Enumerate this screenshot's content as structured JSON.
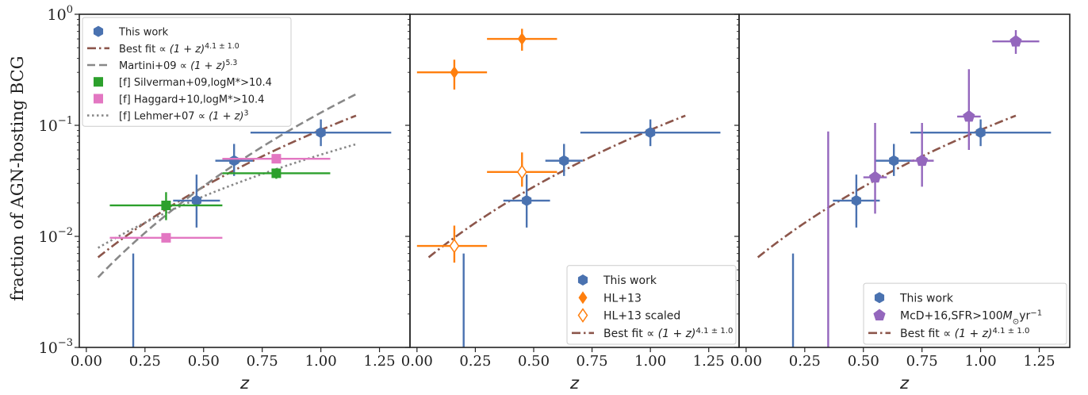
{
  "figure": {
    "ylabel": "fraction of AGN-hosting BCG",
    "colors": {
      "this_work": "#4a72b0",
      "best_fit": "#8c564b",
      "martini": "#888888",
      "silverman": "#2ca02c",
      "haggard": "#e377c2",
      "lehmer": "#888888",
      "hl13": "#ff7f0e",
      "mcd16": "#9467bd"
    }
  },
  "chart_data": [
    {
      "type": "scatter",
      "xlabel": "z",
      "ylabel": "fraction of AGN-hosting BCG",
      "xlim": [
        -0.03,
        1.38
      ],
      "ylim": [
        0.001,
        1.0
      ],
      "yscale": "log",
      "xticks": [
        "0.00",
        "0.25",
        "0.50",
        "0.75",
        "1.00",
        "1.25"
      ],
      "yticks": [
        "10^-3",
        "10^-2",
        "10^-1",
        "10^0"
      ],
      "legend_position": "upper-left",
      "legend": [
        {
          "label": "This work",
          "marker": "hexagon",
          "color": "this_work"
        },
        {
          "label": "Best fit ∝(1+z)^{4.1±1.0}",
          "pre": "Best fit ",
          "math": "∝ (1 + z)",
          "sup": "4.1 ± 1.0",
          "line": "dashdot",
          "color": "best_fit"
        },
        {
          "label": "Martini+09 ∝(1+z)^{5.3}",
          "pre": "Martini+09 ",
          "math": "∝ (1 + z)",
          "sup": "5.3",
          "line": "dashed",
          "color": "martini"
        },
        {
          "label": "[f] Silverman+09,logM*>10.4",
          "pre": "[f] Silverman+09,logM*>10.4",
          "marker": "square",
          "color": "silverman"
        },
        {
          "label": "[f] Haggard+10,logM*>10.4",
          "pre": "[f] Haggard+10,logM*>10.4",
          "marker": "square",
          "color": "haggard"
        },
        {
          "label": "[f] Lehmer+07 ∝(1+z)^3",
          "pre": "[f] Lehmer+07 ",
          "math": "∝ (1 + z)",
          "sup": "3",
          "line": "dotted",
          "color": "lehmer"
        }
      ],
      "points": [
        {
          "series": "This work",
          "marker": "hexagon",
          "color": "this_work",
          "x": 0.47,
          "y": 0.021,
          "xerr": [
            0.1,
            0.1
          ],
          "yerr": [
            0.012,
            0.036
          ]
        },
        {
          "series": "This work",
          "marker": "hexagon",
          "color": "this_work",
          "x": 0.63,
          "y": 0.048,
          "xerr": [
            0.08,
            0.08
          ],
          "yerr": [
            0.035,
            0.068
          ]
        },
        {
          "series": "This work",
          "marker": "hexagon",
          "color": "this_work",
          "x": 1.0,
          "y": 0.086,
          "xerr": [
            0.3,
            0.3
          ],
          "yerr": [
            0.065,
            0.113
          ]
        },
        {
          "series": "This work",
          "marker": "none",
          "color": "this_work",
          "x": 0.2,
          "y": null,
          "yerr": [
            0.001,
            0.007
          ]
        },
        {
          "series": "[f] Silverman+09,logM*>10.4",
          "marker": "square",
          "color": "silverman",
          "x": 0.34,
          "y": 0.019,
          "xerr": [
            0.24,
            0.24
          ],
          "yerr": [
            0.014,
            0.025
          ]
        },
        {
          "series": "[f] Silverman+09,logM*>10.4",
          "marker": "square",
          "color": "silverman",
          "x": 0.81,
          "y": 0.037,
          "xerr": [
            0.23,
            0.23
          ],
          "yerr": [
            0.033,
            0.041
          ]
        },
        {
          "series": "[f] Haggard+10,logM*>10.4",
          "marker": "square",
          "color": "haggard",
          "x": 0.34,
          "y": 0.0097,
          "xerr": [
            0.24,
            0.24
          ]
        },
        {
          "series": "[f] Haggard+10,logM*>10.4",
          "marker": "square",
          "color": "haggard",
          "x": 0.81,
          "y": 0.05,
          "xerr": [
            0.23,
            0.23
          ]
        }
      ],
      "curves": [
        {
          "name": "Best fit",
          "kind": "power",
          "norm": 0.0053,
          "exponent": 4.1,
          "x_range": [
            0.05,
            1.15
          ],
          "line": "dashdot",
          "color": "best_fit"
        },
        {
          "name": "Martini+09",
          "kind": "power",
          "norm": 0.0033,
          "exponent": 5.3,
          "x_range": [
            0.05,
            1.15
          ],
          "line": "dashed",
          "color": "martini"
        },
        {
          "name": "[f] Lehmer+07",
          "kind": "power",
          "norm": 0.0068,
          "exponent": 3.0,
          "x_range": [
            0.05,
            1.15
          ],
          "line": "dotted",
          "color": "lehmer"
        }
      ]
    },
    {
      "type": "scatter",
      "xlabel": "z",
      "xlim": [
        -0.03,
        1.38
      ],
      "ylim": [
        0.001,
        1.0
      ],
      "yscale": "log",
      "xticks": [
        "0.00",
        "0.25",
        "0.50",
        "0.75",
        "1.00",
        "1.25"
      ],
      "legend_position": "lower-right",
      "legend": [
        {
          "label": "This work",
          "marker": "hexagon",
          "color": "this_work"
        },
        {
          "label": "HL+13",
          "marker": "diamond",
          "color": "hl13"
        },
        {
          "label": "HL+13 scaled",
          "marker": "diamond-open",
          "color": "hl13"
        },
        {
          "label": "Best fit ∝(1+z)^{4.1±1.0}",
          "pre": "Best fit ",
          "math": "∝ (1 + z)",
          "sup": "4.1 ± 1.0",
          "line": "dashdot",
          "color": "best_fit"
        }
      ],
      "points": [
        {
          "series": "This work",
          "marker": "hexagon",
          "color": "this_work",
          "x": 0.47,
          "y": 0.021,
          "xerr": [
            0.1,
            0.1
          ],
          "yerr": [
            0.012,
            0.036
          ]
        },
        {
          "series": "This work",
          "marker": "hexagon",
          "color": "this_work",
          "x": 0.63,
          "y": 0.048,
          "xerr": [
            0.08,
            0.08
          ],
          "yerr": [
            0.035,
            0.068
          ]
        },
        {
          "series": "This work",
          "marker": "hexagon",
          "color": "this_work",
          "x": 1.0,
          "y": 0.086,
          "xerr": [
            0.3,
            0.3
          ],
          "yerr": [
            0.065,
            0.113
          ]
        },
        {
          "series": "This work",
          "marker": "none",
          "color": "this_work",
          "x": 0.2,
          "y": null,
          "yerr": [
            0.001,
            0.007
          ]
        },
        {
          "series": "HL+13",
          "marker": "diamond",
          "color": "hl13",
          "x": 0.16,
          "y": 0.3,
          "xerr": [
            0.16,
            0.14
          ],
          "yerr": [
            0.21,
            0.39
          ]
        },
        {
          "series": "HL+13",
          "marker": "diamond",
          "color": "hl13",
          "x": 0.45,
          "y": 0.6,
          "xerr": [
            0.15,
            0.15
          ],
          "yerr": [
            0.47,
            0.74
          ]
        },
        {
          "series": "HL+13 scaled",
          "marker": "diamond-open",
          "color": "hl13",
          "x": 0.16,
          "y": 0.0082,
          "xerr": [
            0.16,
            0.14
          ],
          "yerr": [
            0.0058,
            0.0125
          ]
        },
        {
          "series": "HL+13 scaled",
          "marker": "diamond-open",
          "color": "hl13",
          "x": 0.45,
          "y": 0.038,
          "xerr": [
            0.15,
            0.15
          ],
          "yerr": [
            0.028,
            0.057
          ]
        }
      ],
      "curves": [
        {
          "name": "Best fit",
          "kind": "power",
          "norm": 0.0053,
          "exponent": 4.1,
          "x_range": [
            0.05,
            1.15
          ],
          "line": "dashdot",
          "color": "best_fit"
        }
      ]
    },
    {
      "type": "scatter",
      "xlabel": "z",
      "xlim": [
        -0.03,
        1.38
      ],
      "ylim": [
        0.001,
        1.0
      ],
      "yscale": "log",
      "xticks": [
        "0.00",
        "0.25",
        "0.50",
        "0.75",
        "1.00",
        "1.25"
      ],
      "legend_position": "lower-right",
      "legend": [
        {
          "label": "This work",
          "marker": "hexagon",
          "color": "this_work"
        },
        {
          "label": "McD+16,SFR>100M⊙yr^-1",
          "pre": "McD+16,SFR>100",
          "math": "M",
          "sub": "⊙",
          "post": "yr",
          "sup": "−1",
          "marker": "pentagon",
          "color": "mcd16"
        },
        {
          "label": "Best fit ∝(1+z)^{4.1±1.0}",
          "pre": "Best fit ",
          "math": "∝ (1 + z)",
          "sup": "4.1 ± 1.0",
          "line": "dashdot",
          "color": "best_fit"
        }
      ],
      "points": [
        {
          "series": "This work",
          "marker": "hexagon",
          "color": "this_work",
          "x": 0.47,
          "y": 0.021,
          "xerr": [
            0.1,
            0.1
          ],
          "yerr": [
            0.012,
            0.036
          ]
        },
        {
          "series": "This work",
          "marker": "hexagon",
          "color": "this_work",
          "x": 0.63,
          "y": 0.048,
          "xerr": [
            0.08,
            0.08
          ],
          "yerr": [
            0.035,
            0.068
          ]
        },
        {
          "series": "This work",
          "marker": "hexagon",
          "color": "this_work",
          "x": 1.0,
          "y": 0.086,
          "xerr": [
            0.3,
            0.3
          ],
          "yerr": [
            0.065,
            0.113
          ]
        },
        {
          "series": "This work",
          "marker": "none",
          "color": "this_work",
          "x": 0.2,
          "y": null,
          "yerr": [
            0.001,
            0.007
          ]
        },
        {
          "series": "McD+16,SFR>100M⊙yr^-1",
          "marker": "none",
          "color": "mcd16",
          "x": 0.35,
          "y": null,
          "yerr": [
            0.001,
            0.088
          ]
        },
        {
          "series": "McD+16,SFR>100M⊙yr^-1",
          "marker": "pentagon",
          "color": "mcd16",
          "x": 0.55,
          "y": 0.034,
          "xerr": [
            0.05,
            0.05
          ],
          "yerr": [
            0.016,
            0.105
          ]
        },
        {
          "series": "McD+16,SFR>100M⊙yr^-1",
          "marker": "pentagon",
          "color": "mcd16",
          "x": 0.75,
          "y": 0.048,
          "xerr": [
            0.05,
            0.05
          ],
          "yerr": [
            0.028,
            0.105
          ]
        },
        {
          "series": "McD+16,SFR>100M⊙yr^-1",
          "marker": "pentagon",
          "color": "mcd16",
          "x": 0.95,
          "y": 0.12,
          "xerr": [
            0.05,
            0.05
          ],
          "yerr": [
            0.06,
            0.32
          ]
        },
        {
          "series": "McD+16,SFR>100M⊙yr^-1",
          "marker": "pentagon",
          "color": "mcd16",
          "x": 1.15,
          "y": 0.57,
          "xerr": [
            0.1,
            0.1
          ],
          "yerr": [
            0.44,
            0.72
          ]
        }
      ],
      "curves": [
        {
          "name": "Best fit",
          "kind": "power",
          "norm": 0.0053,
          "exponent": 4.1,
          "x_range": [
            0.05,
            1.15
          ],
          "line": "dashdot",
          "color": "best_fit"
        }
      ]
    }
  ]
}
